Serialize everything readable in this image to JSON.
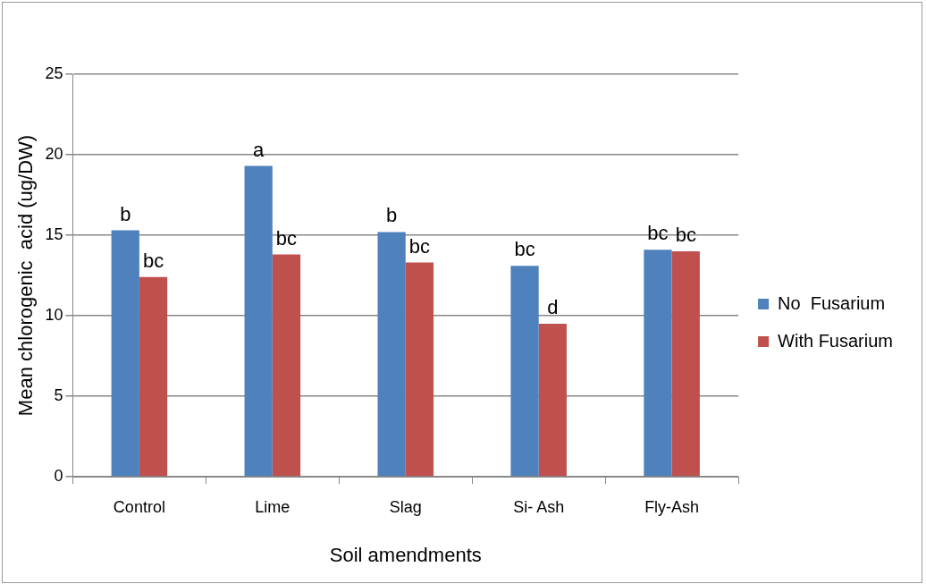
{
  "chart_data": {
    "type": "bar",
    "xlabel": "Soil amendments",
    "ylabel": "Mean chlorogenic  acid (ug/DW)",
    "categories": [
      "Control",
      "Lime",
      "Slag",
      "Si- Ash",
      "Fly-Ash"
    ],
    "series": [
      {
        "name": "No  Fusarium",
        "color": "#4f81bd",
        "values": [
          15.3,
          19.3,
          15.2,
          13.1,
          14.1
        ],
        "value_labels": [
          "b",
          "a",
          "b",
          "bc",
          "bc"
        ]
      },
      {
        "name": "With Fusarium",
        "color": "#c0504d",
        "values": [
          12.4,
          13.8,
          13.3,
          9.5,
          14.0
        ],
        "value_labels": [
          "bc",
          "bc",
          "bc",
          "d",
          "bc"
        ]
      }
    ],
    "ylim": [
      0,
      25
    ],
    "yticks": [
      0,
      5,
      10,
      15,
      20,
      25
    ],
    "grid": "y",
    "legend": "right"
  }
}
